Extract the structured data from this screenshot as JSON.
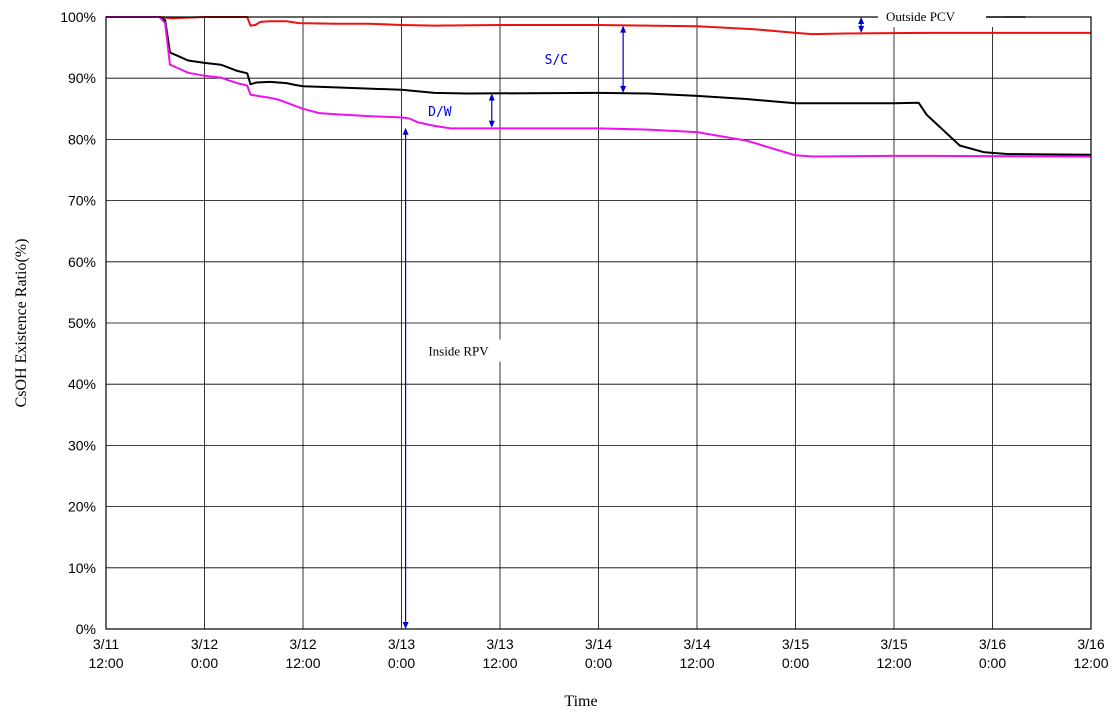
{
  "chart_data": {
    "type": "line",
    "title": "",
    "xlabel": "Time",
    "ylabel": "CsOH Existence Ratio(%)",
    "ylim": [
      0,
      100
    ],
    "xlim": [
      0,
      120
    ],
    "grid": true,
    "y_ticks": [
      "0%",
      "10%",
      "20%",
      "30%",
      "40%",
      "50%",
      "60%",
      "70%",
      "80%",
      "90%",
      "100%"
    ],
    "x_ticks": [
      {
        "date": "3/11",
        "time": "12:00"
      },
      {
        "date": "3/12",
        "time": "0:00"
      },
      {
        "date": "3/12",
        "time": "12:00"
      },
      {
        "date": "3/13",
        "time": "0:00"
      },
      {
        "date": "3/13",
        "time": "12:00"
      },
      {
        "date": "3/14",
        "time": "0:00"
      },
      {
        "date": "3/14",
        "time": "12:00"
      },
      {
        "date": "3/15",
        "time": "0:00"
      },
      {
        "date": "3/15",
        "time": "12:00"
      },
      {
        "date": "3/16",
        "time": "0:00"
      },
      {
        "date": "3/16",
        "time": "12:00"
      }
    ],
    "series": [
      {
        "color": "#ee1111",
        "points": [
          [
            0,
            100
          ],
          [
            4,
            100
          ],
          [
            6.5,
            100
          ],
          [
            8,
            99.8
          ],
          [
            12,
            100
          ],
          [
            16,
            100
          ],
          [
            17.2,
            100
          ],
          [
            17.6,
            98.6
          ],
          [
            18.2,
            98.7
          ],
          [
            18.8,
            99.2
          ],
          [
            20,
            99.3
          ],
          [
            22,
            99.3
          ],
          [
            23.5,
            99.0
          ],
          [
            28,
            98.9
          ],
          [
            32,
            98.9
          ],
          [
            36,
            98.7
          ],
          [
            40,
            98.6
          ],
          [
            48,
            98.7
          ],
          [
            60,
            98.7
          ],
          [
            66,
            98.6
          ],
          [
            72,
            98.5
          ],
          [
            79,
            98.0
          ],
          [
            84,
            97.4
          ],
          [
            86,
            97.2
          ],
          [
            90,
            97.3
          ],
          [
            100,
            97.4
          ],
          [
            120,
            97.4
          ]
        ]
      },
      {
        "color": "#000000",
        "points": [
          [
            0,
            100
          ],
          [
            4,
            100
          ],
          [
            6.5,
            100
          ],
          [
            7.2,
            99.5
          ],
          [
            7.8,
            94.2
          ],
          [
            9,
            93.5
          ],
          [
            10,
            92.9
          ],
          [
            12,
            92.5
          ],
          [
            14,
            92.2
          ],
          [
            15,
            91.7
          ],
          [
            16,
            91.2
          ],
          [
            17.2,
            90.8
          ],
          [
            17.6,
            89.0
          ],
          [
            18.3,
            89.3
          ],
          [
            20,
            89.4
          ],
          [
            22,
            89.2
          ],
          [
            23,
            88.9
          ],
          [
            24,
            88.7
          ],
          [
            28,
            88.5
          ],
          [
            32,
            88.3
          ],
          [
            36,
            88.1
          ],
          [
            40,
            87.6
          ],
          [
            44,
            87.5
          ],
          [
            60,
            87.6
          ],
          [
            66,
            87.5
          ],
          [
            72,
            87.1
          ],
          [
            78,
            86.6
          ],
          [
            84,
            85.9
          ],
          [
            96,
            85.9
          ],
          [
            99,
            86.0
          ],
          [
            100,
            84.0
          ],
          [
            102,
            81.5
          ],
          [
            104,
            79.0
          ],
          [
            107,
            77.9
          ],
          [
            110,
            77.6
          ],
          [
            120,
            77.5
          ]
        ]
      },
      {
        "color": "#ee11ee",
        "points": [
          [
            0,
            100
          ],
          [
            4,
            100
          ],
          [
            6.5,
            100
          ],
          [
            7.2,
            99.0
          ],
          [
            7.8,
            92.2
          ],
          [
            9,
            91.5
          ],
          [
            10,
            90.9
          ],
          [
            12,
            90.4
          ],
          [
            14,
            90.1
          ],
          [
            15,
            89.6
          ],
          [
            16,
            89.2
          ],
          [
            17.2,
            88.8
          ],
          [
            17.6,
            87.3
          ],
          [
            19,
            87.0
          ],
          [
            20,
            86.8
          ],
          [
            21,
            86.5
          ],
          [
            22,
            86.0
          ],
          [
            24,
            85.0
          ],
          [
            26,
            84.3
          ],
          [
            28,
            84.1
          ],
          [
            32,
            83.8
          ],
          [
            36,
            83.6
          ],
          [
            37,
            83.4
          ],
          [
            38,
            82.8
          ],
          [
            40,
            82.2
          ],
          [
            42,
            81.8
          ],
          [
            48,
            81.8
          ],
          [
            60,
            81.8
          ],
          [
            66,
            81.6
          ],
          [
            72,
            81.2
          ],
          [
            78,
            79.8
          ],
          [
            84,
            77.4
          ],
          [
            86,
            77.2
          ],
          [
            96,
            77.3
          ],
          [
            100,
            77.3
          ],
          [
            120,
            77.2
          ]
        ]
      }
    ],
    "annotations": [
      {
        "text": "Outside PCV",
        "x": 96,
        "y": 100
      },
      {
        "text": "S/C",
        "x": 51,
        "y": 93
      },
      {
        "text": "D/W",
        "x": 39,
        "y": 84.5
      },
      {
        "text": "Inside RPV",
        "x": 40,
        "y": 45
      }
    ],
    "arrows": [
      {
        "x": 92,
        "y1": 97.4,
        "y2": 100
      },
      {
        "x": 63,
        "y1": 87.6,
        "y2": 98.6
      },
      {
        "x": 47,
        "y1": 81.9,
        "y2": 87.5
      },
      {
        "x": 36.5,
        "y1": 0,
        "y2": 81.9
      }
    ],
    "arrow_color": "#0000cc",
    "legend_line_color": "#000000"
  }
}
